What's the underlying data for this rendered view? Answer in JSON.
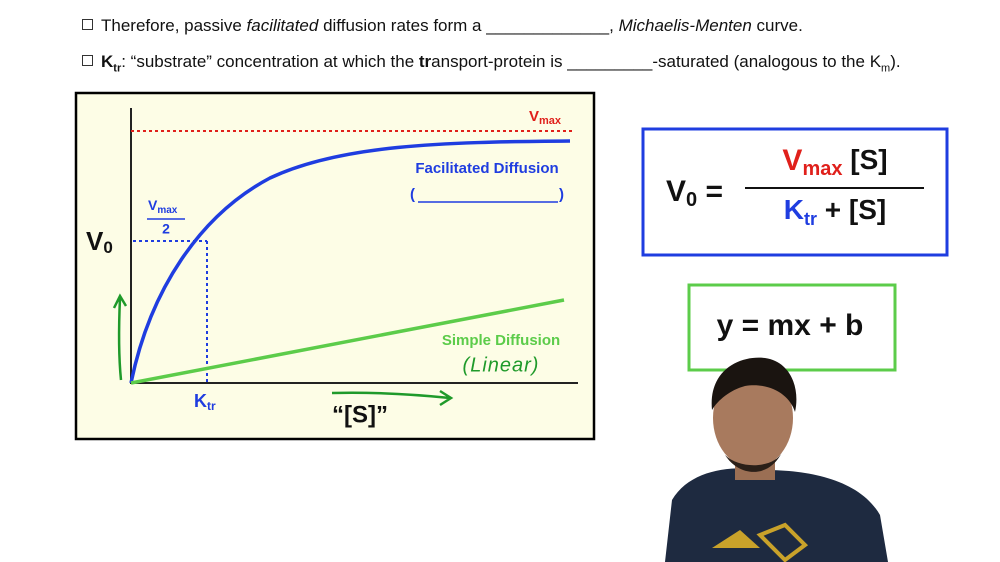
{
  "bullets": [
    {
      "parts": [
        "Therefore, passive ",
        "facilitated",
        " diffusion rates form a _____________, ",
        "Michaelis-Menten",
        " curve."
      ]
    },
    {
      "parts": [
        "K",
        "tr",
        ": “substrate” concentration at which the ",
        "tr",
        "ansport-protein is _________-saturated (analogous to the K",
        "m",
        ")."
      ]
    }
  ],
  "graph": {
    "vmax": [
      "V",
      "max"
    ],
    "facilitated_label": "Facilitated Diffusion",
    "blank_open": "(",
    "blank_close": ")",
    "y_label": [
      "V",
      "0"
    ],
    "half_vmax": [
      "V",
      "max",
      "2"
    ],
    "simple_label": "Simple Diffusion",
    "linear_note": "(Linear)",
    "ktr": [
      "K",
      "tr"
    ],
    "x_label": "“[S]”"
  },
  "equation": {
    "lhs": [
      "V",
      "0",
      " ="
    ],
    "numerator": [
      "V",
      "max",
      " [S]"
    ],
    "denominator": [
      "K",
      "tr",
      " + [S]"
    ]
  },
  "linear_equation": "y = mx + b"
}
